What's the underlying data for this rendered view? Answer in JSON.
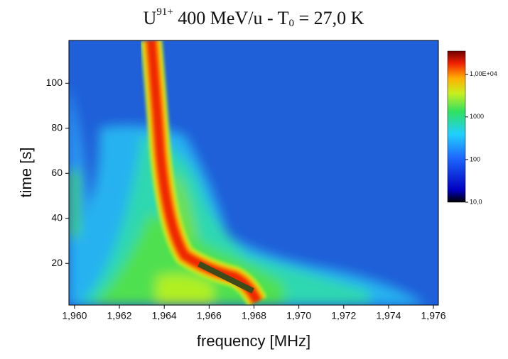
{
  "chart_data": {
    "type": "heatmap",
    "title": {
      "base": "U",
      "sup": "91+",
      "mid": " 400 MeV/u - T",
      "sub": "0",
      "end": " = 27,0 K"
    },
    "x_label": "frequency [MHz]",
    "y_label": "time [s]",
    "xlim": [
      1.95975,
      1.97622
    ],
    "xticks": [
      {
        "value": 1.96,
        "label": "1,960"
      },
      {
        "value": 1.962,
        "label": "1,962"
      },
      {
        "value": 1.964,
        "label": "1,964"
      },
      {
        "value": 1.966,
        "label": "1,966"
      },
      {
        "value": 1.968,
        "label": "1,968"
      },
      {
        "value": 1.97,
        "label": "1,970"
      },
      {
        "value": 1.972,
        "label": "1,972"
      },
      {
        "value": 1.974,
        "label": "1,974"
      },
      {
        "value": 1.976,
        "label": "1,976"
      }
    ],
    "ylim": [
      1.5,
      119
    ],
    "yticks": [
      20,
      40,
      60,
      80,
      100
    ],
    "colorbar": {
      "scale": "log",
      "lim": [
        10,
        35000
      ],
      "ticks": [
        {
          "value": 10000,
          "label": "1,00E+04"
        },
        1000,
        100,
        {
          "value": 10,
          "label": "10,0"
        }
      ]
    }
  }
}
